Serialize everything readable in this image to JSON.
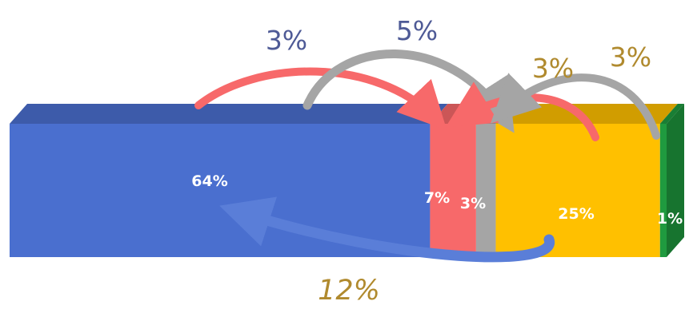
{
  "chart_data": {
    "type": "bar",
    "orientation": "horizontal",
    "stacked": true,
    "segments": [
      {
        "label": "64%",
        "value": 64,
        "color": "#4a6fcf"
      },
      {
        "label": "7%",
        "value": 7,
        "color": "#f7696a"
      },
      {
        "label": "3%",
        "value": 3,
        "color": "#a5a5a5"
      },
      {
        "label": "25%",
        "value": 25,
        "color": "#ffc000"
      },
      {
        "label": "1%",
        "value": 1,
        "color": "#1f9a3f"
      }
    ],
    "flows": [
      {
        "from": "64%",
        "to": "7%",
        "label": "3%",
        "color": "#f7696a",
        "label_color": "#4e5a96"
      },
      {
        "from": "64%",
        "to": "3%",
        "label": "5%",
        "color": "#a5a5a5",
        "label_color": "#4e5a96"
      },
      {
        "from": "25%",
        "to": "7%",
        "label": "3%",
        "color": "#f7696a",
        "label_color": "#b08a2e"
      },
      {
        "from": "1%",
        "to": "3%",
        "label": "3%",
        "color": "#a5a5a5",
        "label_color": "#b08a2e"
      },
      {
        "from": "25%",
        "to": "64%",
        "label": "12%",
        "color": "#5a7ed8",
        "label_color": "#b08a2e"
      }
    ]
  }
}
